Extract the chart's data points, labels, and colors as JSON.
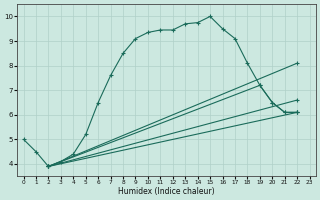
{
  "bg_color": "#cce8e0",
  "grid_color": "#b0d0c8",
  "line_color": "#1a6b5a",
  "xlabel": "Humidex (Indice chaleur)",
  "xlim": [
    -0.5,
    23.5
  ],
  "ylim": [
    3.5,
    10.5
  ],
  "xticks": [
    0,
    1,
    2,
    3,
    4,
    5,
    6,
    7,
    8,
    9,
    10,
    11,
    12,
    13,
    14,
    15,
    16,
    17,
    18,
    19,
    20,
    21,
    22,
    23
  ],
  "yticks": [
    4,
    5,
    6,
    7,
    8,
    9,
    10
  ],
  "line1_x": [
    0,
    1,
    2,
    3,
    4,
    5,
    6,
    7,
    8,
    9,
    10,
    11,
    12,
    13,
    14,
    15,
    16,
    17,
    18,
    19,
    20,
    21,
    22
  ],
  "line1_y": [
    5.0,
    4.5,
    3.9,
    4.1,
    4.4,
    5.2,
    6.5,
    7.6,
    8.5,
    9.1,
    9.35,
    9.45,
    9.45,
    9.7,
    9.75,
    10.0,
    9.5,
    9.1,
    8.1,
    7.2,
    6.5,
    6.1,
    6.1
  ],
  "line2_x": [
    2,
    22
  ],
  "line2_y": [
    3.9,
    8.1
  ],
  "line3_x": [
    2,
    19,
    20,
    21,
    22
  ],
  "line3_y": [
    3.9,
    7.2,
    6.5,
    6.1,
    6.1
  ],
  "line4_x": [
    2,
    22
  ],
  "line4_y": [
    3.9,
    6.1
  ],
  "line5_x": [
    2,
    22
  ],
  "line5_y": [
    3.9,
    6.6
  ]
}
